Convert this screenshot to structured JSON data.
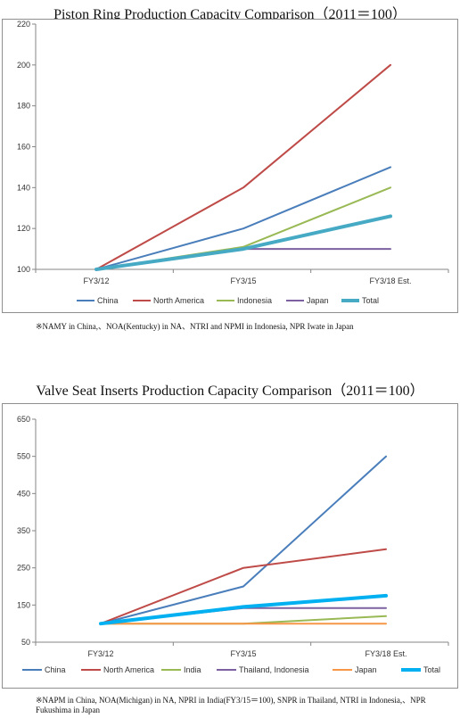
{
  "chart_data": [
    {
      "type": "line",
      "title": "Piston Ring Production Capacity  Comparison（2011＝100）",
      "categories": [
        "FY3/12",
        "FY3/15",
        "FY3/18 Est."
      ],
      "ylim": [
        100,
        220
      ],
      "yticks": [
        100,
        120,
        140,
        160,
        180,
        200,
        220
      ],
      "grid": false,
      "legend_position": "bottom",
      "series": [
        {
          "name": "China",
          "values": [
            100,
            120,
            150
          ],
          "color": "#4a7ebb",
          "width": 2
        },
        {
          "name": "North America",
          "values": [
            100,
            140,
            200
          ],
          "color": "#be4b48",
          "width": 2
        },
        {
          "name": "Indonesia",
          "values": [
            100,
            111,
            140
          ],
          "color": "#98b954",
          "width": 2
        },
        {
          "name": "Japan",
          "values": [
            100,
            110,
            110
          ],
          "color": "#7d60a0",
          "width": 2
        },
        {
          "name": "Total",
          "values": [
            100,
            110,
            126
          ],
          "color": "#46aac5",
          "width": 4
        }
      ],
      "footnote": "※NAMY in China,、NOA(Kentucky) in NA、NTRI and NPMI in  Indonesia, NPR Iwate in Japan"
    },
    {
      "type": "line",
      "title": "Valve Seat Inserts Production Capacity  Comparison（2011＝100）",
      "categories": [
        "FY3/12",
        "FY3/15",
        "FY3/18 Est."
      ],
      "ylim": [
        50,
        650
      ],
      "yticks": [
        50,
        150,
        250,
        350,
        450,
        550,
        650
      ],
      "grid": false,
      "legend_position": "bottom",
      "series": [
        {
          "name": "China",
          "values": [
            100,
            200,
            550
          ],
          "color": "#4a7ebb",
          "width": 2
        },
        {
          "name": "North America",
          "values": [
            100,
            250,
            300
          ],
          "color": "#be4b48",
          "width": 2
        },
        {
          "name": "India",
          "values": [
            100,
            100,
            120
          ],
          "color": "#98b954",
          "width": 2
        },
        {
          "name": "Thailand, Indonesia",
          "values": [
            100,
            142,
            142
          ],
          "color": "#7d60a0",
          "width": 2
        },
        {
          "name": "Japan",
          "values": [
            100,
            100,
            100
          ],
          "color": "#f79646",
          "width": 2
        },
        {
          "name": "Total",
          "values": [
            100,
            145,
            175
          ],
          "color": "#00b0f0",
          "width": 4
        }
      ],
      "footnote": "※NAPM in China, NOA(Michigan) in NA, NPRI in India(FY3/15＝100), SNPR in Thailand, NTRI in Indonesia,、NPR Fukushima in Japan"
    }
  ]
}
